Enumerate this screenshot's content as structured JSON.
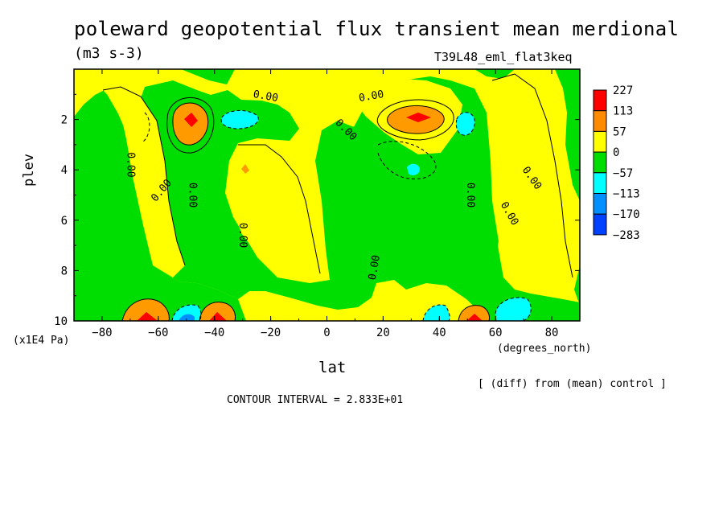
{
  "chart_data": {
    "type": "contour",
    "title": "poleward geopotential flux transient mean merdional",
    "units": "(m3 s-3)",
    "run_label": "T39L48_eml_flat3keq",
    "xlabel": "lat",
    "x_units": "(degrees_north)",
    "ylabel": "plev",
    "y_units": "(x1E4 Pa)",
    "xlim": [
      -90,
      90
    ],
    "ylim": [
      10,
      0
    ],
    "x_ticks": [
      "-80",
      "-60",
      "-40",
      "-20",
      "0",
      "20",
      "40",
      "60",
      "80"
    ],
    "x_tick_values": [
      -80,
      -60,
      -40,
      -20,
      0,
      20,
      40,
      60,
      80
    ],
    "y_ticks": [
      "2",
      "4",
      "6",
      "8",
      "10"
    ],
    "y_tick_values": [
      2,
      4,
      6,
      8,
      10
    ],
    "colorbar": {
      "labels": [
        "227",
        "113",
        "57",
        "0",
        "-57",
        "-113",
        "-170",
        "-283"
      ],
      "colors": [
        "#ff0000",
        "#ff8c00",
        "#ffff00",
        "#00dd00",
        "#00ffff",
        "#0090ff",
        "#0040ff"
      ]
    },
    "contour_labels": [
      "0.00"
    ],
    "contour_interval": "CONTOUR INTERVAL = 2.833E+01",
    "note": "[ (diff) from (mean) control ]",
    "features": [
      {
        "lat": -47,
        "plev": 2.0,
        "value": 227,
        "kind": "max"
      },
      {
        "lat": 33,
        "plev": 2.0,
        "value": 227,
        "kind": "max"
      },
      {
        "lat": -27,
        "plev": 4.0,
        "value": 113,
        "kind": "max"
      },
      {
        "lat": -30,
        "plev": 2.0,
        "value": -113,
        "kind": "min"
      },
      {
        "lat": 49,
        "plev": 2.2,
        "value": -113,
        "kind": "min"
      },
      {
        "lat": 30,
        "plev": 4.0,
        "value": -113,
        "kind": "min"
      },
      {
        "lat": -60,
        "plev": 9.7,
        "value": 170,
        "kind": "max"
      },
      {
        "lat": -38,
        "plev": 9.7,
        "value": 227,
        "kind": "max"
      },
      {
        "lat": -50,
        "plev": 9.8,
        "value": -170,
        "kind": "min"
      },
      {
        "lat": 50,
        "plev": 9.8,
        "value": 227,
        "kind": "max"
      },
      {
        "lat": 62,
        "plev": 9.5,
        "value": -113,
        "kind": "min"
      },
      {
        "lat": 40,
        "plev": 9.6,
        "value": -113,
        "kind": "min"
      }
    ]
  },
  "text": {
    "title": "poleward geopotential flux transient mean merdional",
    "units": "(m3 s-3)",
    "run": "T39L48_eml_flat3keq",
    "ylabel": "plev",
    "yunits": "(x1E4 Pa)",
    "xunits": "(degrees_north)",
    "xlabel": "lat",
    "diffnote": "[ (diff) from (mean) control ]",
    "cint": "CONTOUR INTERVAL = 2.833E+01"
  }
}
